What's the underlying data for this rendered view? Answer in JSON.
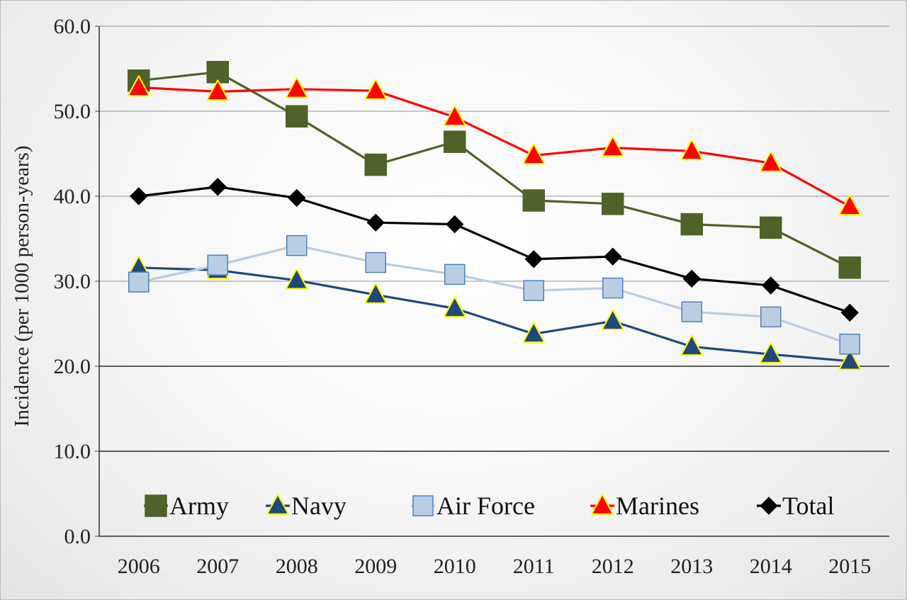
{
  "chart_data": {
    "type": "line",
    "title": "",
    "xlabel": "",
    "ylabel": "Incidence (per 1000 person-years)",
    "ylim": [
      0,
      60
    ],
    "yticks": [
      "0.0",
      "10.0",
      "20.0",
      "30.0",
      "40.0",
      "50.0",
      "60.0"
    ],
    "categories": [
      "2006",
      "2007",
      "2008",
      "2009",
      "2010",
      "2011",
      "2012",
      "2013",
      "2014",
      "2015"
    ],
    "grid": "horizontal",
    "legend_position": "bottom",
    "series": [
      {
        "name": "Army",
        "marker": "square",
        "color": "#4f6228",
        "marker_stroke": "#4f6228",
        "values": [
          53.6,
          54.6,
          49.4,
          43.7,
          46.4,
          39.5,
          39.1,
          36.7,
          36.3,
          31.6
        ]
      },
      {
        "name": "Navy",
        "marker": "triangle",
        "color": "#1f497d",
        "marker_stroke": "#ffff00",
        "values": [
          31.6,
          31.3,
          30.1,
          28.4,
          26.8,
          23.8,
          25.3,
          22.3,
          21.4,
          20.6
        ]
      },
      {
        "name": "Air Force",
        "marker": "square",
        "color": "#b9cde5",
        "marker_stroke": "#4f81bd",
        "values": [
          29.9,
          31.9,
          34.2,
          32.2,
          30.8,
          28.9,
          29.2,
          26.4,
          25.8,
          22.6
        ]
      },
      {
        "name": "Marines",
        "marker": "triangle",
        "color": "#ff0000",
        "marker_stroke": "#ffff00",
        "values": [
          52.8,
          52.3,
          52.6,
          52.4,
          49.3,
          44.8,
          45.7,
          45.3,
          43.9,
          38.8
        ]
      },
      {
        "name": "Total",
        "marker": "diamond",
        "color": "#000000",
        "marker_stroke": "#000000",
        "values": [
          40.0,
          41.1,
          39.8,
          36.9,
          36.7,
          32.6,
          32.9,
          30.3,
          29.5,
          26.3
        ]
      }
    ]
  }
}
